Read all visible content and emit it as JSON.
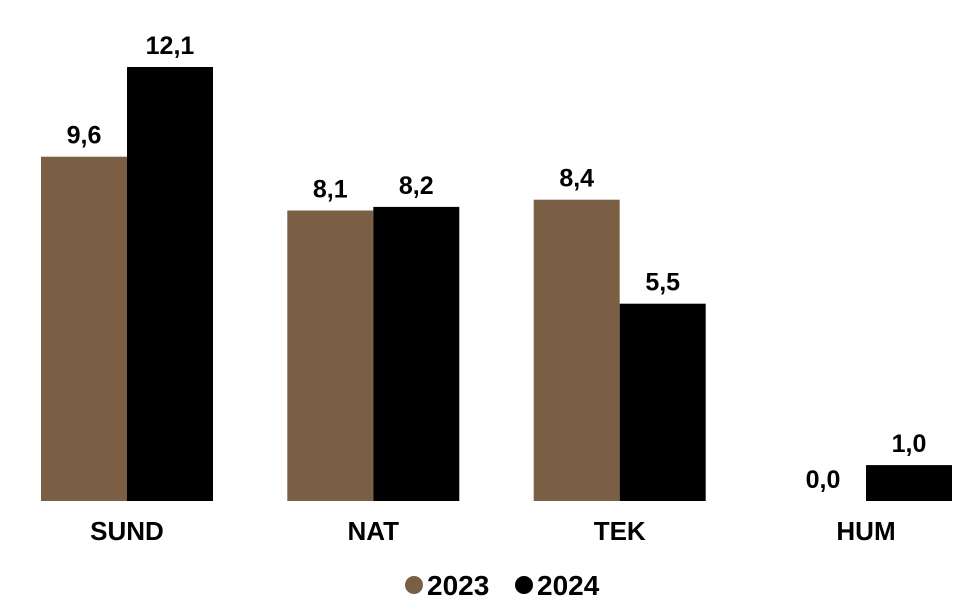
{
  "chart_data": {
    "type": "bar",
    "categories": [
      "SUND",
      "NAT",
      "TEK",
      "HUM"
    ],
    "series": [
      {
        "name": "2023",
        "color": "#7b5f45",
        "values": [
          9.6,
          8.1,
          8.4,
          0.0
        ]
      },
      {
        "name": "2024",
        "color": "#000000",
        "values": [
          12.1,
          8.2,
          5.5,
          1.0
        ]
      }
    ],
    "value_labels": [
      [
        "9,6",
        "8,1",
        "8,4",
        "0,0"
      ],
      [
        "12,1",
        "8,2",
        "5,5",
        "1,0"
      ]
    ],
    "ylim": [
      0,
      12.1
    ],
    "grid": false,
    "legend_position": "bottom-center",
    "title": "",
    "xlabel": "",
    "ylabel": ""
  }
}
